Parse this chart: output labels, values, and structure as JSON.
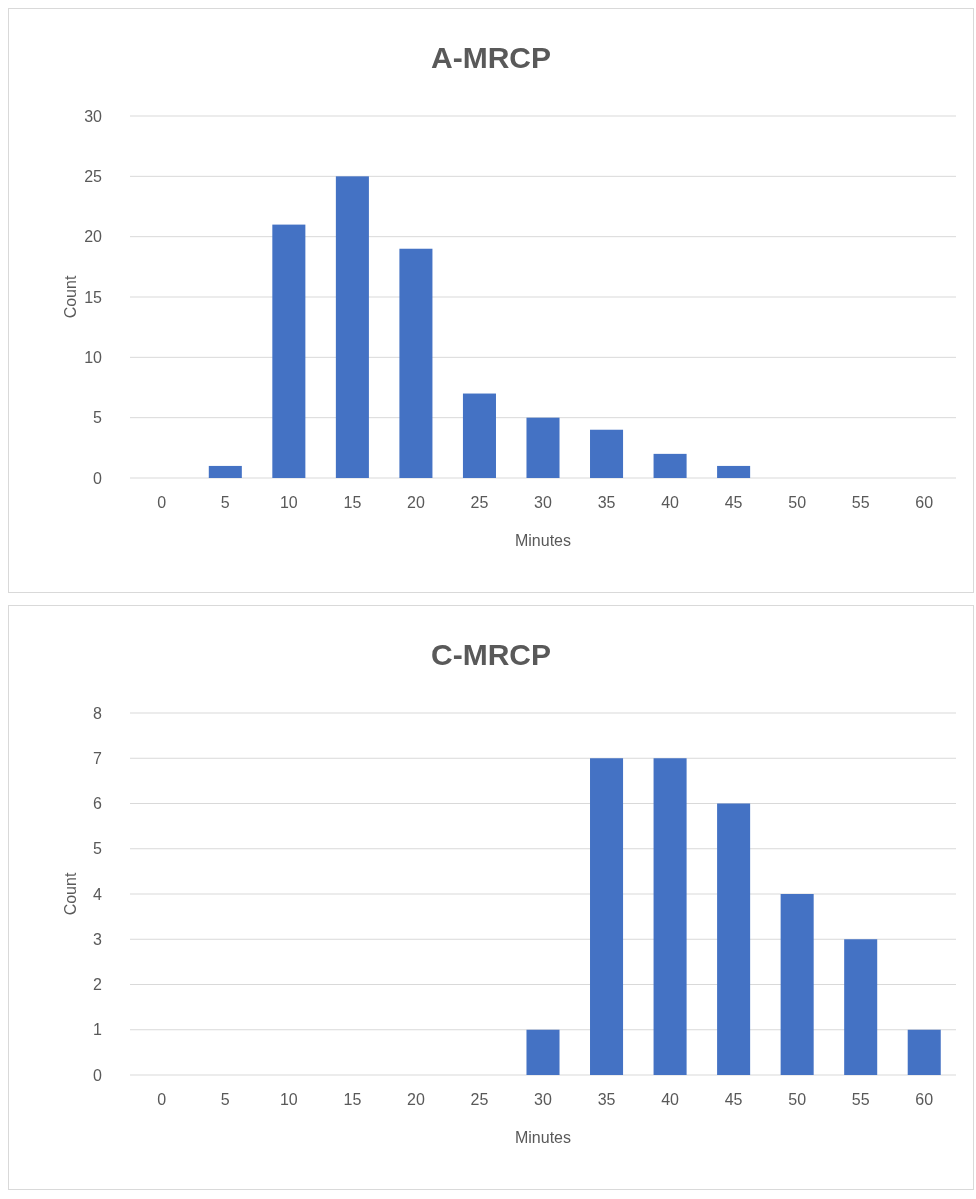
{
  "chart_data": [
    {
      "type": "bar",
      "title": "A-MRCP",
      "xlabel": "Minutes",
      "ylabel": "Count",
      "categories": [
        "0",
        "5",
        "10",
        "15",
        "20",
        "25",
        "30",
        "35",
        "40",
        "45",
        "50",
        "55",
        "60"
      ],
      "values": [
        0,
        1,
        21,
        25,
        19,
        7,
        5,
        4,
        2,
        1,
        0,
        0,
        0
      ],
      "color": "#4472c4",
      "ylim": [
        0,
        30
      ],
      "yticks": [
        0,
        5,
        10,
        15,
        20,
        25,
        30
      ],
      "grid": "y"
    },
    {
      "type": "bar",
      "title": "C-MRCP",
      "xlabel": "Minutes",
      "ylabel": "Count",
      "categories": [
        "0",
        "5",
        "10",
        "15",
        "20",
        "25",
        "30",
        "35",
        "40",
        "45",
        "50",
        "55",
        "60"
      ],
      "values": [
        0,
        0,
        0,
        0,
        0,
        0,
        1,
        7,
        7,
        6,
        4,
        3,
        1
      ],
      "color": "#4472c4",
      "ylim": [
        0,
        8
      ],
      "yticks": [
        0,
        1,
        2,
        3,
        4,
        5,
        6,
        7,
        8
      ],
      "grid": "y"
    }
  ]
}
